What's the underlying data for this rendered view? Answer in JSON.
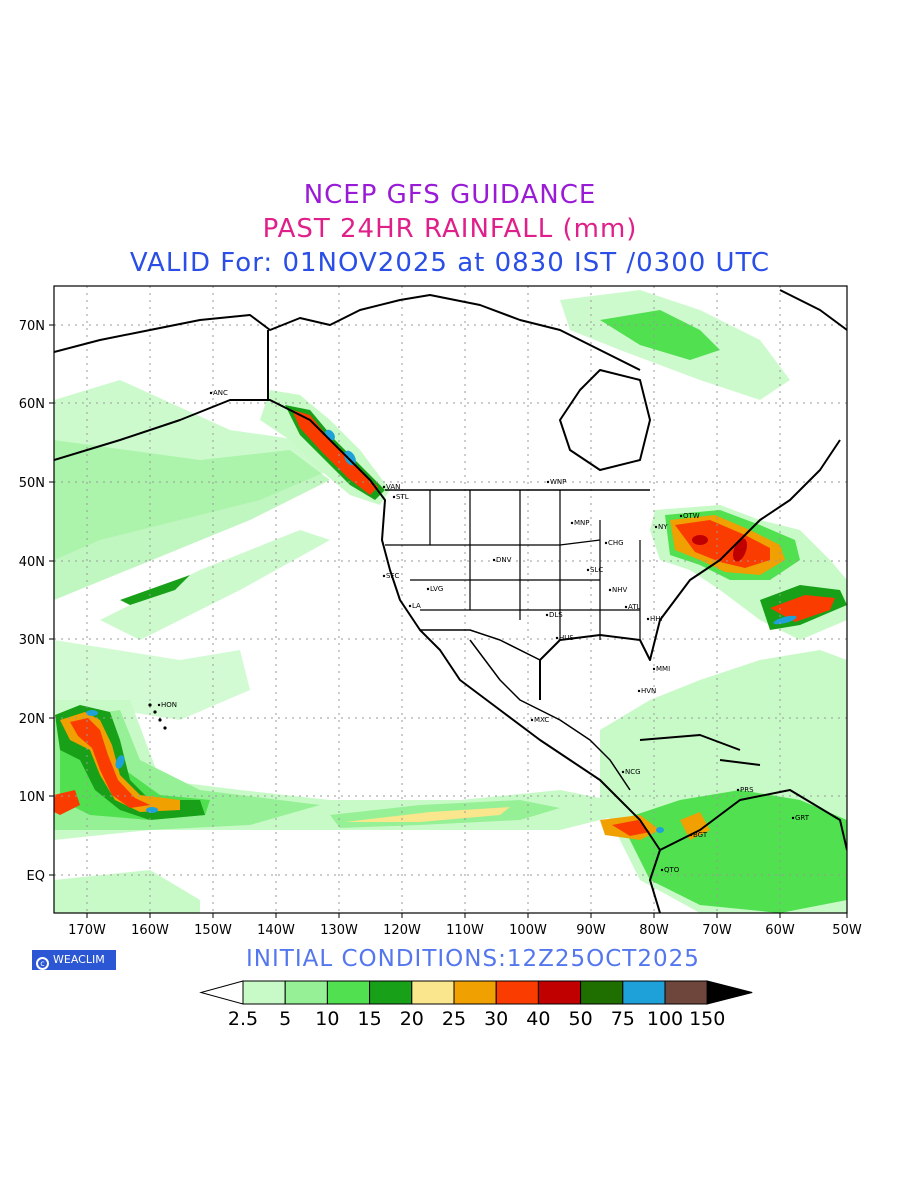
{
  "titles": {
    "line1": "NCEP GFS GUIDANCE",
    "line2": "PAST 24HR RAINFALL (mm)",
    "line3": "VALID For: 01NOV2025 at 0830 IST /0300 UTC"
  },
  "colors": {
    "line1": "#9a1bd6",
    "line2": "#e0208a",
    "line3": "#2a4ee6",
    "init": "#5577ee"
  },
  "initial_conditions": "INITIAL CONDITIONS:12Z25OCT2025",
  "logo": {
    "text": "WEACLIM",
    "icon": "copyright-icon"
  },
  "axes": {
    "lon_labels": [
      "170W",
      "160W",
      "150W",
      "140W",
      "130W",
      "120W",
      "110W",
      "100W",
      "90W",
      "80W",
      "70W",
      "60W",
      "50W"
    ],
    "lat_labels": [
      "70N",
      "60N",
      "50N",
      "40N",
      "30N",
      "20N",
      "10N",
      "EQ"
    ]
  },
  "legend": {
    "levels": [
      "2.5",
      "5",
      "10",
      "15",
      "20",
      "25",
      "30",
      "40",
      "50",
      "75",
      "100",
      "150"
    ],
    "colors": [
      "#c8fac8",
      "#96f096",
      "#50e050",
      "#18a018",
      "#fae68c",
      "#f0a000",
      "#fa3c00",
      "#c00000",
      "#1e6e00",
      "#1ea0d8",
      "#6e463c"
    ]
  },
  "cities": [
    {
      "name": "ANC"
    },
    {
      "name": "VAN"
    },
    {
      "name": "STL"
    },
    {
      "name": "WNP"
    },
    {
      "name": "MNP"
    },
    {
      "name": "OTW"
    },
    {
      "name": "CHG"
    },
    {
      "name": "DNV"
    },
    {
      "name": "SFC"
    },
    {
      "name": "LVG"
    },
    {
      "name": "LA"
    },
    {
      "name": "SLC"
    },
    {
      "name": "NHV"
    },
    {
      "name": "ATL"
    },
    {
      "name": "DLS"
    },
    {
      "name": "HHI"
    },
    {
      "name": "HUS"
    },
    {
      "name": "MMI"
    },
    {
      "name": "HVN"
    },
    {
      "name": "MXC"
    },
    {
      "name": "HON"
    },
    {
      "name": "NCG"
    },
    {
      "name": "PRS"
    },
    {
      "name": "GRT"
    },
    {
      "name": "BGT"
    },
    {
      "name": "QTO"
    },
    {
      "name": "NY"
    }
  ]
}
